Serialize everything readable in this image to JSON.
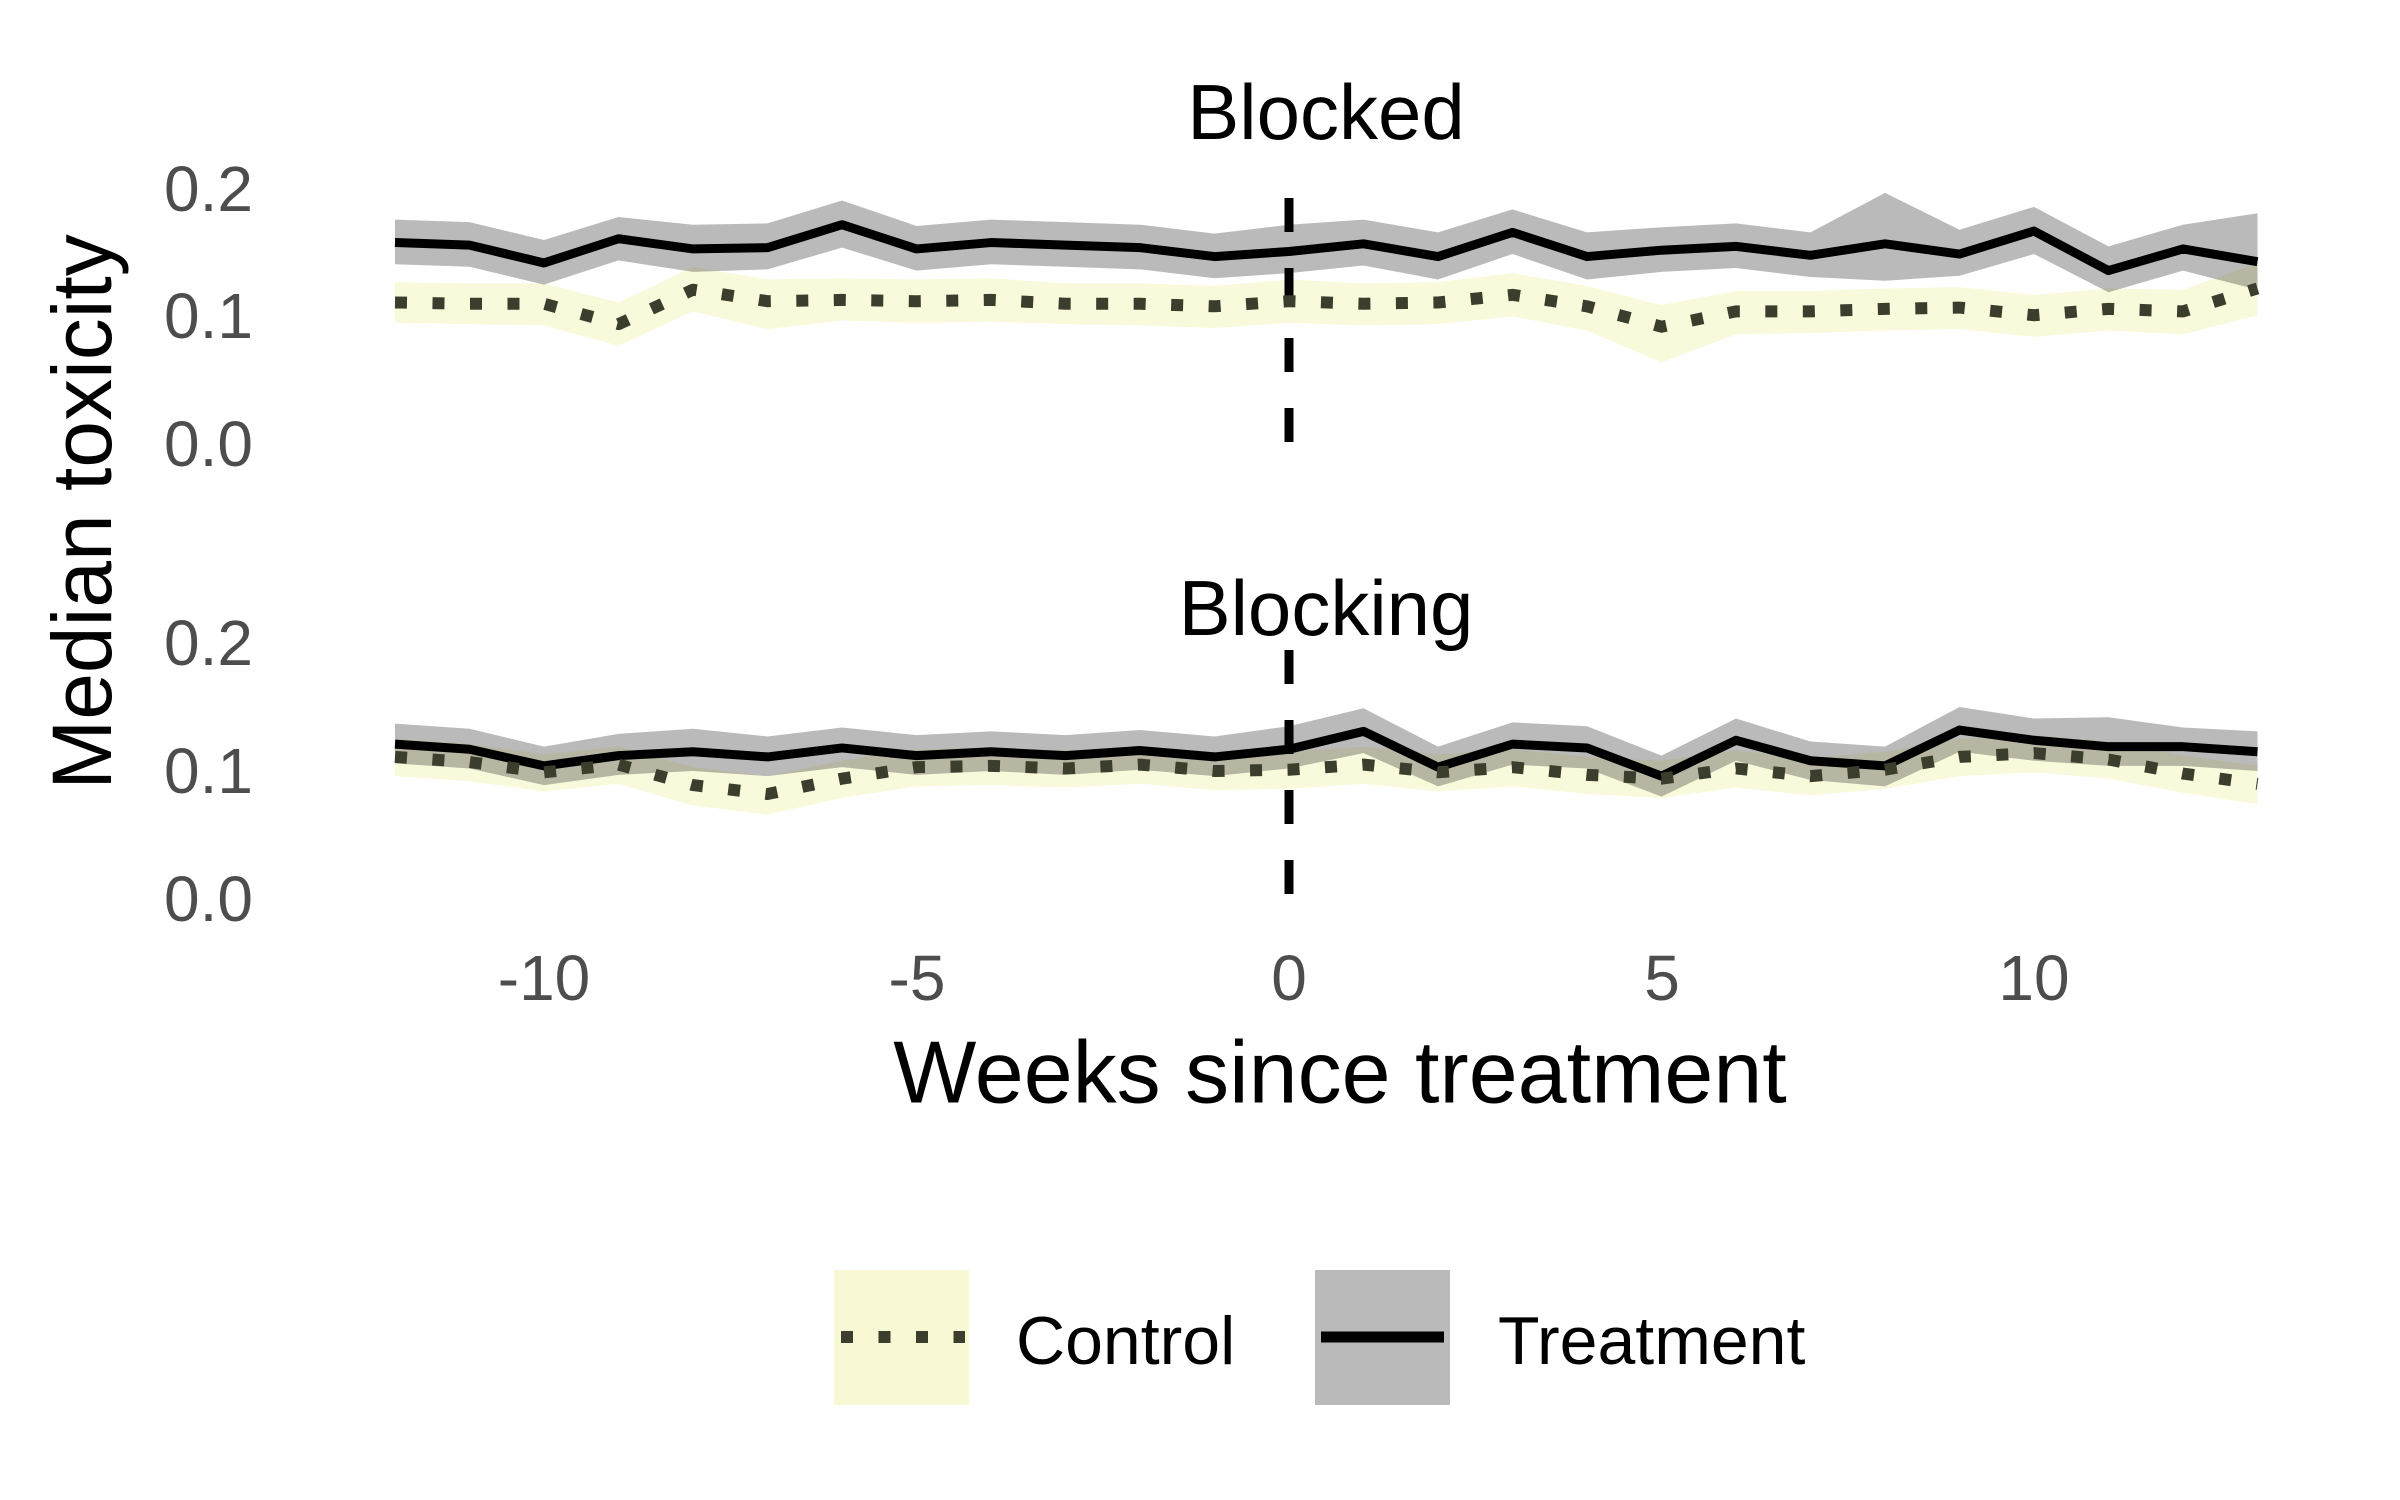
{
  "chart_data": {
    "type": "line",
    "title": "",
    "xlabel": "Weeks since treatment",
    "ylabel": "Median toxicity",
    "x_ticks": {
      "values": [
        -10,
        -5,
        0,
        5,
        10
      ],
      "labels": [
        "-10",
        "-5",
        "0",
        "5",
        "10"
      ]
    },
    "y_ticks": {
      "values": [
        0.0,
        0.1,
        0.2
      ],
      "labels": [
        "0.0",
        "0.1",
        "0.2"
      ]
    },
    "x_range": [
      -12,
      13
    ],
    "ylim": [
      0,
      0.21
    ],
    "grid": "off",
    "legend_position": "bottom",
    "vline": {
      "x": 0,
      "style": "dashed",
      "color": "#000000"
    },
    "weeks": [
      -12,
      -11,
      -10,
      -9,
      -8,
      -7,
      -6,
      -5,
      -4,
      -3,
      -2,
      -1,
      0,
      1,
      2,
      3,
      4,
      5,
      6,
      7,
      8,
      9,
      10,
      11,
      12,
      13
    ],
    "facets": [
      {
        "label": "Blocked",
        "series": [
          {
            "name": "Control",
            "line_style": "dotted",
            "line_color": "#3c3e2d",
            "ribbon_color": "rgba(247,248,205,0.72)",
            "median": [
              0.111,
              0.11,
              0.11,
              0.094,
              0.121,
              0.112,
              0.113,
              0.112,
              0.113,
              0.11,
              0.11,
              0.108,
              0.112,
              0.11,
              0.111,
              0.117,
              0.108,
              0.092,
              0.104,
              0.104,
              0.106,
              0.107,
              0.101,
              0.106,
              0.104,
              0.122
            ],
            "upper": [
              0.127,
              0.126,
              0.126,
              0.111,
              0.139,
              0.129,
              0.13,
              0.129,
              0.13,
              0.126,
              0.126,
              0.124,
              0.129,
              0.126,
              0.127,
              0.134,
              0.124,
              0.109,
              0.12,
              0.12,
              0.122,
              0.123,
              0.117,
              0.122,
              0.121,
              0.142
            ],
            "lower": [
              0.095,
              0.094,
              0.093,
              0.077,
              0.104,
              0.09,
              0.097,
              0.095,
              0.096,
              0.094,
              0.093,
              0.091,
              0.095,
              0.093,
              0.094,
              0.1,
              0.089,
              0.064,
              0.086,
              0.087,
              0.089,
              0.09,
              0.084,
              0.089,
              0.086,
              0.101
            ]
          },
          {
            "name": "Treatment",
            "line_style": "solid",
            "line_color": "#000000",
            "ribbon_color": "rgba(45,45,45,0.33)",
            "median": [
              0.158,
              0.156,
              0.142,
              0.161,
              0.153,
              0.154,
              0.172,
              0.153,
              0.158,
              0.156,
              0.154,
              0.147,
              0.151,
              0.157,
              0.147,
              0.166,
              0.147,
              0.152,
              0.155,
              0.148,
              0.157,
              0.149,
              0.167,
              0.136,
              0.153,
              0.143
            ],
            "upper": [
              0.176,
              0.174,
              0.16,
              0.178,
              0.172,
              0.173,
              0.191,
              0.171,
              0.176,
              0.174,
              0.172,
              0.165,
              0.172,
              0.176,
              0.166,
              0.184,
              0.166,
              0.17,
              0.173,
              0.166,
              0.197,
              0.168,
              0.186,
              0.155,
              0.172,
              0.181
            ],
            "lower": [
              0.141,
              0.139,
              0.125,
              0.144,
              0.135,
              0.137,
              0.154,
              0.136,
              0.141,
              0.139,
              0.137,
              0.13,
              0.134,
              0.14,
              0.129,
              0.149,
              0.129,
              0.135,
              0.138,
              0.131,
              0.128,
              0.132,
              0.149,
              0.119,
              0.136,
              0.121
            ]
          }
        ]
      },
      {
        "label": "Blocking",
        "series": [
          {
            "name": "Control",
            "line_style": "dotted",
            "line_color": "#3c3e2d",
            "ribbon_color": "rgba(247,248,205,0.72)",
            "median": [
              0.111,
              0.107,
              0.099,
              0.105,
              0.089,
              0.082,
              0.094,
              0.103,
              0.104,
              0.102,
              0.105,
              0.1,
              0.101,
              0.105,
              0.099,
              0.103,
              0.097,
              0.094,
              0.102,
              0.096,
              0.101,
              0.111,
              0.114,
              0.109,
              0.098,
              0.09
            ],
            "upper": [
              0.125,
              0.121,
              0.113,
              0.119,
              0.103,
              0.096,
              0.108,
              0.117,
              0.118,
              0.116,
              0.119,
              0.114,
              0.115,
              0.119,
              0.113,
              0.117,
              0.111,
              0.108,
              0.116,
              0.11,
              0.115,
              0.125,
              0.128,
              0.123,
              0.112,
              0.104
            ],
            "lower": [
              0.096,
              0.092,
              0.084,
              0.09,
              0.073,
              0.066,
              0.079,
              0.088,
              0.089,
              0.087,
              0.09,
              0.085,
              0.086,
              0.09,
              0.084,
              0.088,
              0.082,
              0.079,
              0.087,
              0.081,
              0.086,
              0.096,
              0.099,
              0.094,
              0.083,
              0.074
            ]
          },
          {
            "name": "Treatment",
            "line_style": "solid",
            "line_color": "#000000",
            "ribbon_color": "rgba(45,45,45,0.33)",
            "median": [
              0.121,
              0.117,
              0.104,
              0.112,
              0.115,
              0.111,
              0.118,
              0.112,
              0.115,
              0.112,
              0.116,
              0.111,
              0.117,
              0.131,
              0.103,
              0.121,
              0.118,
              0.096,
              0.124,
              0.108,
              0.104,
              0.132,
              0.124,
              0.119,
              0.119,
              0.115
            ],
            "upper": [
              0.137,
              0.133,
              0.119,
              0.129,
              0.133,
              0.127,
              0.134,
              0.128,
              0.131,
              0.128,
              0.132,
              0.127,
              0.135,
              0.149,
              0.119,
              0.138,
              0.135,
              0.112,
              0.141,
              0.123,
              0.119,
              0.15,
              0.141,
              0.142,
              0.134,
              0.131
            ],
            "lower": [
              0.106,
              0.102,
              0.089,
              0.097,
              0.1,
              0.096,
              0.103,
              0.097,
              0.1,
              0.097,
              0.101,
              0.096,
              0.102,
              0.114,
              0.088,
              0.105,
              0.102,
              0.08,
              0.108,
              0.093,
              0.088,
              0.115,
              0.108,
              0.104,
              0.104,
              0.1
            ]
          }
        ]
      }
    ],
    "legend": {
      "entries": [
        {
          "label": "Control",
          "key": "dotted-line-on-pale-yellow"
        },
        {
          "label": "Treatment",
          "key": "solid-line-on-gray"
        }
      ]
    }
  }
}
